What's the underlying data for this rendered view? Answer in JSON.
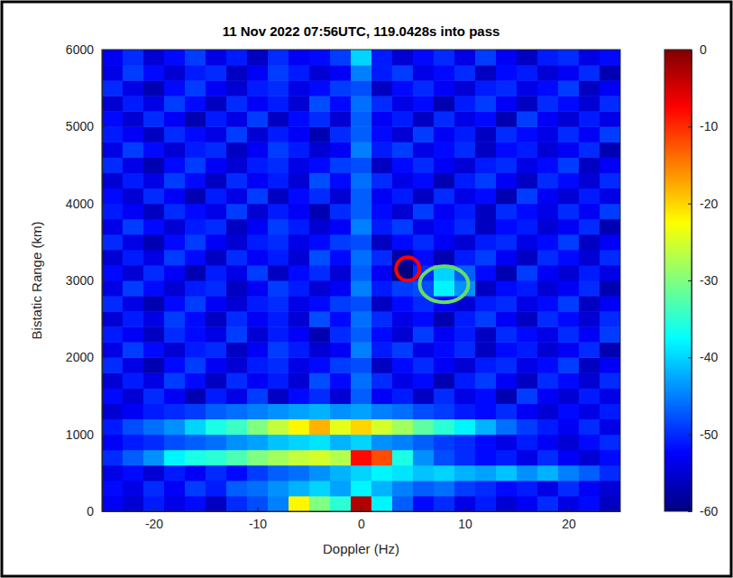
{
  "chart_data": {
    "type": "heatmap",
    "title": "11 Nov 2022 07:56UTC, 119.0428s into pass",
    "x_label": "Doppler (Hz)",
    "y_label": "Bistatic Range (km)",
    "xlim": [
      -25,
      25
    ],
    "ylim": [
      0,
      6000
    ],
    "xticks": [
      -20,
      -10,
      0,
      10,
      20
    ],
    "yticks": [
      0,
      1000,
      2000,
      3000,
      4000,
      5000,
      6000
    ],
    "x": [
      -25,
      -23,
      -21,
      -19,
      -17,
      -15,
      -13,
      -11,
      -9,
      -7,
      -5,
      -3,
      -1,
      1,
      3,
      5,
      7,
      9,
      11,
      13,
      15,
      17,
      19,
      21,
      23,
      25
    ],
    "y": [
      0,
      200,
      400,
      600,
      800,
      1000,
      1200,
      1400,
      1600,
      1800,
      2000,
      2200,
      2400,
      2600,
      2800,
      3000,
      3200,
      3400,
      3600,
      3800,
      4000,
      4200,
      4400,
      4600,
      4800,
      5000,
      5200,
      5400,
      5600,
      5800,
      6000
    ],
    "z": [
      [
        -53,
        -55,
        -51,
        -54,
        -52,
        -56,
        -50,
        -48,
        -45,
        -22,
        -30,
        -35,
        -3,
        -38,
        -47,
        -52,
        -50,
        -54,
        -51,
        -55,
        -53,
        -50,
        -54,
        -52,
        -56
      ],
      [
        -52,
        -54,
        -50,
        -53,
        -49,
        -51,
        -47,
        -46,
        -44,
        -42,
        -40,
        -43,
        -38,
        -42,
        -45,
        -47,
        -46,
        -49,
        -50,
        -52,
        -51,
        -54,
        -50,
        -53,
        -55
      ],
      [
        -54,
        -52,
        -55,
        -51,
        -53,
        -50,
        -52,
        -49,
        -47,
        -46,
        -44,
        -42,
        -40,
        -38,
        -39,
        -41,
        -40,
        -42,
        -43,
        -41,
        -44,
        -42,
        -45,
        -47,
        -50
      ],
      [
        -50,
        -47,
        -44,
        -38,
        -36,
        -35,
        -33,
        -30,
        -28,
        -26,
        -25,
        -27,
        -8,
        -12,
        -36,
        -44,
        -48,
        -50,
        -52,
        -51,
        -54,
        -50,
        -53,
        -55,
        -52
      ],
      [
        -53,
        -51,
        -50,
        -48,
        -47,
        -46,
        -44,
        -43,
        -41,
        -40,
        -39,
        -42,
        -40,
        -44,
        -45,
        -47,
        -49,
        -50,
        -52,
        -54,
        -51,
        -53,
        -55,
        -52,
        -50
      ],
      [
        -51,
        -48,
        -46,
        -44,
        -40,
        -36,
        -34,
        -30,
        -26,
        -22,
        -18,
        -24,
        -20,
        -25,
        -28,
        -32,
        -35,
        -38,
        -42,
        -46,
        -49,
        -51,
        -53,
        -50,
        -54
      ],
      [
        -55,
        -53,
        -51,
        -50,
        -49,
        -47,
        -46,
        -45,
        -44,
        -43,
        -42,
        -44,
        -43,
        -45,
        -46,
        -48,
        -49,
        -51,
        -52,
        -50,
        -53,
        -55,
        -52,
        -54,
        -51
      ],
      [
        -52,
        -55,
        -50,
        -53,
        -57,
        -51,
        -54,
        -49,
        -56,
        -52,
        -50,
        -55,
        -47,
        -53,
        -51,
        -56,
        -50,
        -54,
        -52,
        -57,
        -49,
        -53,
        -55,
        -51,
        -54
      ],
      [
        -55,
        -51,
        -54,
        -49,
        -52,
        -56,
        -50,
        -53,
        -51,
        -55,
        -48,
        -52,
        -46,
        -50,
        -54,
        -52,
        -57,
        -51,
        -49,
        -53,
        -56,
        -50,
        -52,
        -55,
        -50
      ],
      [
        -50,
        -54,
        -57,
        -52,
        -49,
        -53,
        -55,
        -51,
        -50,
        -54,
        -52,
        -49,
        -48,
        -56,
        -52,
        -50,
        -53,
        -55,
        -51,
        -50,
        -54,
        -52,
        -49,
        -56,
        -53
      ],
      [
        -54,
        -49,
        -52,
        -55,
        -51,
        -50,
        -56,
        -53,
        -49,
        -51,
        -55,
        -53,
        -45,
        -51,
        -49,
        -54,
        -52,
        -50,
        -56,
        -52,
        -51,
        -55,
        -53,
        -50,
        -57
      ],
      [
        -51,
        -53,
        -56,
        -50,
        -52,
        -54,
        -49,
        -55,
        -51,
        -53,
        -57,
        -50,
        -47,
        -52,
        -55,
        -49,
        -53,
        -51,
        -56,
        -50,
        -52,
        -54,
        -50,
        -53,
        -49
      ],
      [
        -55,
        -51,
        -54,
        -49,
        -52,
        -56,
        -50,
        -53,
        -51,
        -55,
        -48,
        -52,
        -46,
        -50,
        -54,
        -52,
        -57,
        -51,
        -49,
        -53,
        -56,
        -50,
        -52,
        -55,
        -50
      ],
      [
        -50,
        -54,
        -57,
        -52,
        -49,
        -53,
        -55,
        -51,
        -50,
        -54,
        -52,
        -49,
        -48,
        -56,
        -52,
        -50,
        -53,
        -55,
        -51,
        -50,
        -54,
        -52,
        -49,
        -56,
        -53
      ],
      [
        -54,
        -49,
        -52,
        -55,
        -51,
        -50,
        -56,
        -53,
        -49,
        -51,
        -55,
        -53,
        -45,
        -51,
        -49,
        -48,
        -38,
        -44,
        -56,
        -52,
        -51,
        -55,
        -53,
        -50,
        -57
      ],
      [
        -52,
        -55,
        -50,
        -53,
        -57,
        -51,
        -54,
        -49,
        -56,
        -52,
        -50,
        -55,
        -47,
        -53,
        -60,
        -50,
        -40,
        -47,
        -52,
        -57,
        -49,
        -53,
        -55,
        -51,
        -54
      ],
      [
        -55,
        -51,
        -54,
        -49,
        -52,
        -56,
        -50,
        -53,
        -51,
        -55,
        -48,
        -52,
        -46,
        -50,
        -58,
        -52,
        -57,
        -51,
        -49,
        -53,
        -56,
        -50,
        -52,
        -55,
        -50
      ],
      [
        -50,
        -54,
        -57,
        -52,
        -49,
        -53,
        -55,
        -51,
        -50,
        -54,
        -52,
        -49,
        -48,
        -56,
        -52,
        -50,
        -53,
        -55,
        -51,
        -50,
        -54,
        -52,
        -49,
        -56,
        -53
      ],
      [
        -54,
        -49,
        -52,
        -55,
        -51,
        -50,
        -56,
        -53,
        -49,
        -51,
        -55,
        -53,
        -45,
        -51,
        -49,
        -54,
        -52,
        -50,
        -56,
        -52,
        -51,
        -55,
        -53,
        -50,
        -57
      ],
      [
        -51,
        -53,
        -56,
        -50,
        -52,
        -54,
        -49,
        -55,
        -51,
        -53,
        -57,
        -50,
        -47,
        -52,
        -55,
        -49,
        -53,
        -51,
        -56,
        -50,
        -52,
        -54,
        -50,
        -53,
        -49
      ],
      [
        -52,
        -55,
        -50,
        -53,
        -57,
        -51,
        -54,
        -49,
        -56,
        -52,
        -50,
        -55,
        -47,
        -53,
        -51,
        -56,
        -50,
        -54,
        -52,
        -57,
        -49,
        -53,
        -55,
        -51,
        -54
      ],
      [
        -55,
        -51,
        -54,
        -49,
        -52,
        -56,
        -50,
        -53,
        -51,
        -55,
        -48,
        -52,
        -46,
        -50,
        -54,
        -52,
        -57,
        -51,
        -49,
        -53,
        -56,
        -50,
        -52,
        -55,
        -50
      ],
      [
        -50,
        -54,
        -57,
        -52,
        -49,
        -53,
        -55,
        -51,
        -50,
        -54,
        -52,
        -49,
        -48,
        -56,
        -52,
        -50,
        -53,
        -55,
        -51,
        -50,
        -54,
        -52,
        -49,
        -56,
        -53
      ],
      [
        -54,
        -49,
        -52,
        -55,
        -51,
        -50,
        -56,
        -53,
        -49,
        -51,
        -55,
        -53,
        -45,
        -51,
        -49,
        -54,
        -52,
        -50,
        -56,
        -52,
        -51,
        -55,
        -53,
        -50,
        -57
      ],
      [
        -51,
        -53,
        -56,
        -50,
        -52,
        -54,
        -49,
        -55,
        -51,
        -53,
        -57,
        -50,
        -47,
        -52,
        -55,
        -49,
        -53,
        -51,
        -56,
        -50,
        -52,
        -54,
        -50,
        -53,
        -49
      ],
      [
        -52,
        -55,
        -50,
        -53,
        -57,
        -51,
        -54,
        -49,
        -56,
        -52,
        -50,
        -55,
        -47,
        -53,
        -51,
        -56,
        -50,
        -54,
        -52,
        -57,
        -49,
        -53,
        -55,
        -51,
        -54
      ],
      [
        -55,
        -51,
        -54,
        -49,
        -52,
        -56,
        -50,
        -53,
        -51,
        -55,
        -48,
        -52,
        -46,
        -50,
        -54,
        -52,
        -57,
        -51,
        -49,
        -53,
        -56,
        -50,
        -52,
        -55,
        -50
      ],
      [
        -50,
        -54,
        -57,
        -52,
        -49,
        -53,
        -55,
        -51,
        -50,
        -54,
        -52,
        -49,
        -48,
        -56,
        -52,
        -50,
        -53,
        -55,
        -51,
        -50,
        -54,
        -52,
        -49,
        -56,
        -53
      ],
      [
        -54,
        -49,
        -52,
        -55,
        -51,
        -50,
        -56,
        -53,
        -49,
        -51,
        -55,
        -53,
        -45,
        -51,
        -49,
        -54,
        -52,
        -50,
        -56,
        -52,
        -51,
        -55,
        -53,
        -50,
        -57
      ],
      [
        -53,
        -50,
        -55,
        -52,
        -49,
        -54,
        -51,
        -56,
        -50,
        -53,
        -52,
        -49,
        -40,
        -51,
        -55,
        -52,
        -50,
        -54,
        -49,
        -53,
        -56,
        -51,
        -50,
        -54,
        -52
      ]
    ],
    "colorbar_lim": [
      -60,
      0
    ],
    "colorbar_ticks": [
      0,
      -10,
      -20,
      -30,
      -40,
      -50,
      -60
    ],
    "circles": [
      {
        "x": 4.5,
        "y": 3150,
        "color": "red"
      },
      {
        "x": 8,
        "y": 2950,
        "color": "#66dd66"
      }
    ]
  }
}
